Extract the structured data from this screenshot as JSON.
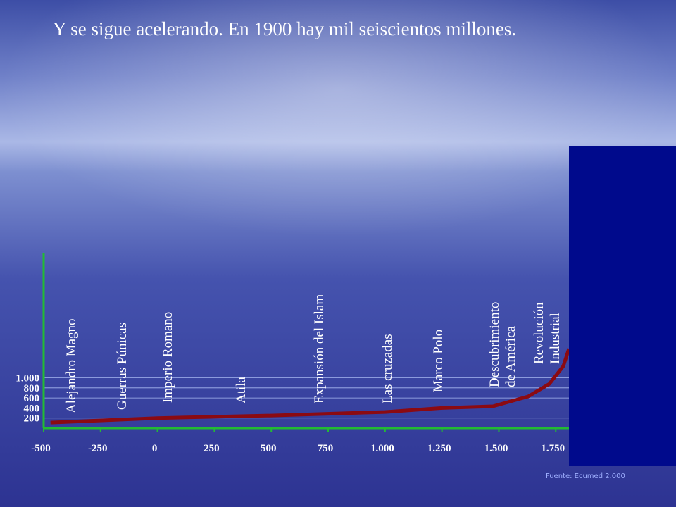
{
  "chart_data": {
    "type": "line",
    "title": "Y se sigue acelerando. En 1900 hay mil seiscientos millones.",
    "source": "Fuente: Ecumed 2.000",
    "x": [
      -470,
      0,
      500,
      1000,
      1250,
      1474,
      1629,
      1722,
      1783,
      1808
    ],
    "values": [
      110,
      200,
      250,
      320,
      400,
      434,
      630,
      880,
      1230,
      1580
    ],
    "color": "#8b0a12",
    "xlim": [
      -500,
      1808
    ],
    "ylim": [
      0,
      3470
    ],
    "xticks": [
      -500,
      -250,
      0,
      250,
      500,
      750,
      {
        "value": 1000,
        "label": "1.000"
      },
      {
        "value": 1250,
        "label": "1.250"
      },
      {
        "value": 1500,
        "label": "1.500"
      },
      {
        "value": 1750,
        "label": "1.750"
      }
    ],
    "yticks": [
      200,
      400,
      600,
      800,
      {
        "value": 1000,
        "label": "1.000"
      }
    ],
    "grid": true,
    "annotations": [
      [
        "Alejandro Magno"
      ],
      [
        "Guerras Púnicas"
      ],
      [
        "Imperio Romano"
      ],
      [
        "Atila"
      ],
      [
        "Expansión del Islam"
      ],
      [
        "Las cruzadas"
      ],
      [
        "Marco Polo"
      ],
      [
        "Descubrimiento",
        "de América"
      ],
      [
        "Revolución",
        "Industrial"
      ]
    ]
  }
}
